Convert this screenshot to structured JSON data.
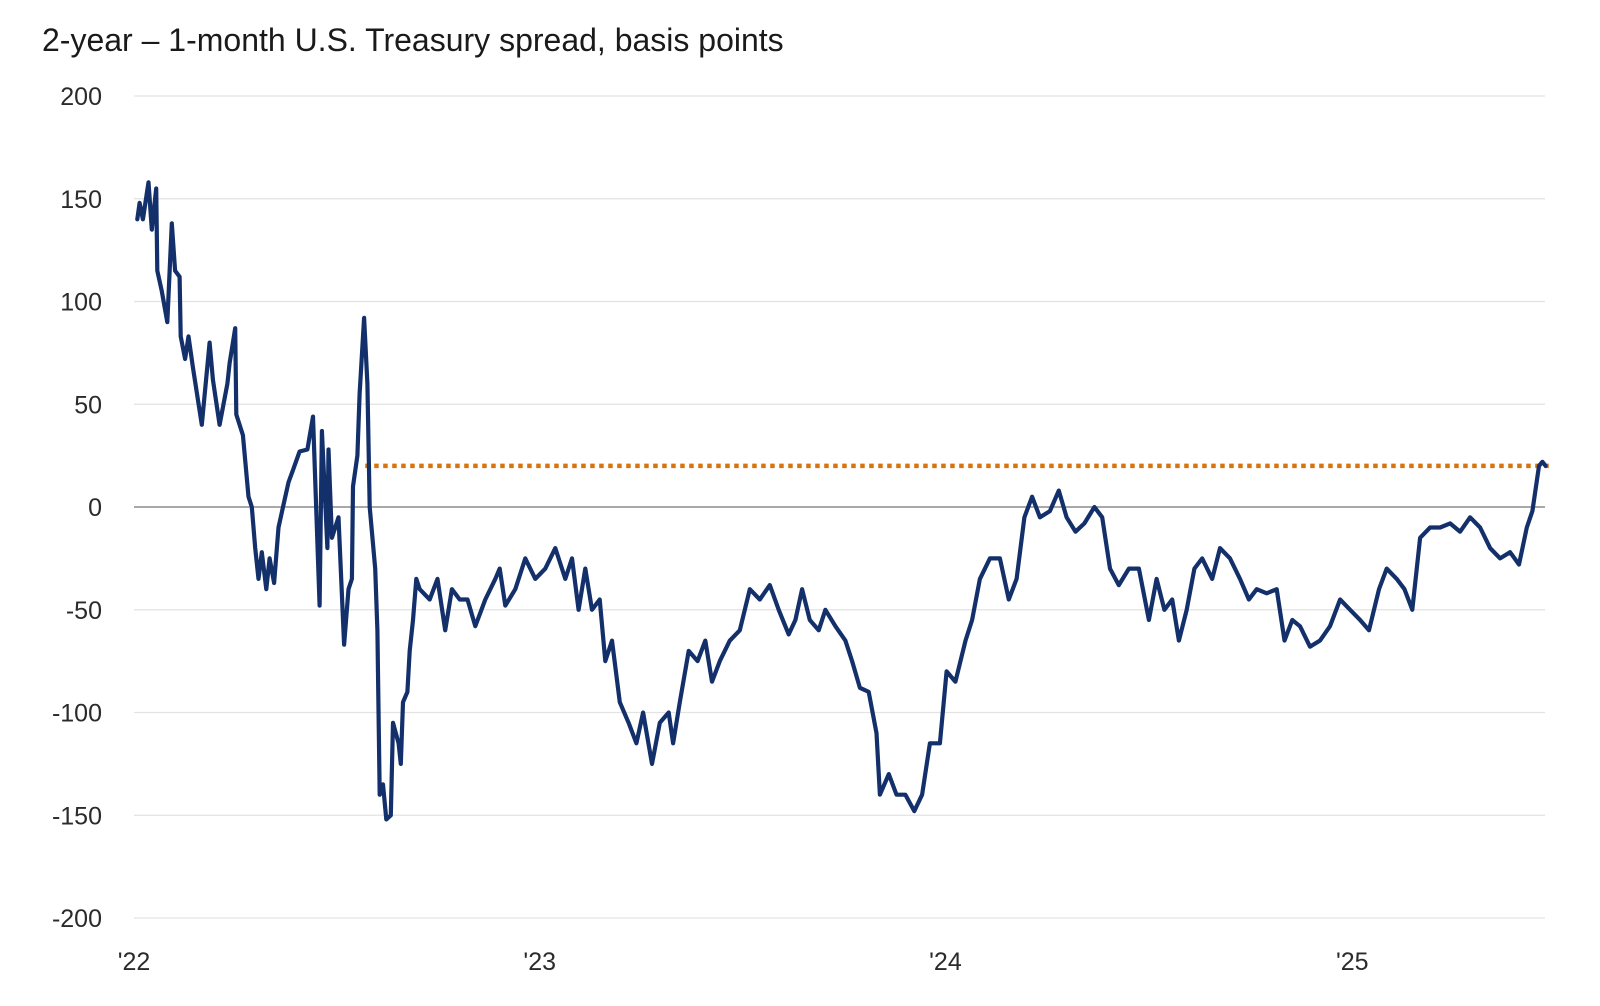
{
  "chart_data": {
    "type": "line",
    "title": "2-year – 1-month U.S. Treasury spread, basis points",
    "xlabel": "",
    "ylabel": "",
    "ylim": [
      -200,
      200
    ],
    "xlim": [
      "2022-01-01",
      "2025-06-25"
    ],
    "grid": true,
    "y_ticks": [
      "200",
      "150",
      "100",
      "50",
      "0",
      "-50",
      "-100",
      "-150",
      "-200"
    ],
    "y_tick_values": [
      200,
      150,
      100,
      50,
      0,
      -50,
      -100,
      -150,
      -200
    ],
    "x_ticks": [
      {
        "label": "'22",
        "date": "2022-01-01"
      },
      {
        "label": "'23",
        "date": "2023-01-01"
      },
      {
        "label": "'24",
        "date": "2024-01-01"
      },
      {
        "label": "'25",
        "date": "2025-01-01"
      }
    ],
    "colors": {
      "series": "#13306b",
      "reference": "#d9730d",
      "grid": "#e3e3e3",
      "zero_line": "#8c8c8c"
    },
    "reference_line": {
      "value": 20,
      "start": "2022-07-28",
      "end": "2025-06-25",
      "style": "dotted"
    },
    "series": [
      {
        "points": [
          [
            "2022-01-04",
            140
          ],
          [
            "2022-01-06",
            148
          ],
          [
            "2022-01-09",
            140
          ],
          [
            "2022-01-14",
            158
          ],
          [
            "2022-01-17",
            135
          ],
          [
            "2022-01-21",
            155
          ],
          [
            "2022-01-22",
            115
          ],
          [
            "2022-01-26",
            105
          ],
          [
            "2022-01-31",
            90
          ],
          [
            "2022-02-04",
            138
          ],
          [
            "2022-02-07",
            115
          ],
          [
            "2022-02-11",
            112
          ],
          [
            "2022-02-12",
            83
          ],
          [
            "2022-02-16",
            72
          ],
          [
            "2022-02-19",
            83
          ],
          [
            "2022-02-23",
            68
          ],
          [
            "2022-03-03",
            40
          ],
          [
            "2022-03-10",
            80
          ],
          [
            "2022-03-13",
            62
          ],
          [
            "2022-03-19",
            40
          ],
          [
            "2022-03-26",
            60
          ],
          [
            "2022-03-28",
            70
          ],
          [
            "2022-04-02",
            87
          ],
          [
            "2022-04-03",
            45
          ],
          [
            "2022-04-09",
            35
          ],
          [
            "2022-04-14",
            5
          ],
          [
            "2022-04-17",
            0
          ],
          [
            "2022-04-20",
            -20
          ],
          [
            "2022-04-23",
            -35
          ],
          [
            "2022-04-26",
            -22
          ],
          [
            "2022-04-30",
            -40
          ],
          [
            "2022-05-03",
            -25
          ],
          [
            "2022-05-07",
            -37
          ],
          [
            "2022-05-11",
            -10
          ],
          [
            "2022-05-15",
            0
          ],
          [
            "2022-05-20",
            12
          ],
          [
            "2022-05-24",
            18
          ],
          [
            "2022-05-30",
            27
          ],
          [
            "2022-06-06",
            28
          ],
          [
            "2022-06-11",
            44
          ],
          [
            "2022-06-17",
            -48
          ],
          [
            "2022-06-19",
            37
          ],
          [
            "2022-06-24",
            -20
          ],
          [
            "2022-06-25",
            28
          ],
          [
            "2022-06-28",
            -15
          ],
          [
            "2022-07-04",
            -5
          ],
          [
            "2022-07-09",
            -67
          ],
          [
            "2022-07-13",
            -40
          ],
          [
            "2022-07-16",
            -35
          ],
          [
            "2022-07-17",
            10
          ],
          [
            "2022-07-21",
            25
          ],
          [
            "2022-07-23",
            55
          ],
          [
            "2022-07-27",
            92
          ],
          [
            "2022-07-30",
            60
          ],
          [
            "2022-08-01",
            0
          ],
          [
            "2022-08-06",
            -30
          ],
          [
            "2022-08-08",
            -60
          ],
          [
            "2022-08-10",
            -140
          ],
          [
            "2022-08-13",
            -135
          ],
          [
            "2022-08-16",
            -152
          ],
          [
            "2022-08-20",
            -150
          ],
          [
            "2022-08-22",
            -105
          ],
          [
            "2022-08-27",
            -115
          ],
          [
            "2022-08-29",
            -125
          ],
          [
            "2022-08-31",
            -95
          ],
          [
            "2022-09-04",
            -90
          ],
          [
            "2022-09-06",
            -70
          ],
          [
            "2022-09-09",
            -55
          ],
          [
            "2022-09-12",
            -35
          ],
          [
            "2022-09-15",
            -40
          ],
          [
            "2022-09-24",
            -45
          ],
          [
            "2022-10-01",
            -35
          ],
          [
            "2022-10-08",
            -60
          ],
          [
            "2022-10-14",
            -40
          ],
          [
            "2022-10-21",
            -45
          ],
          [
            "2022-10-28",
            -45
          ],
          [
            "2022-11-04",
            -58
          ],
          [
            "2022-11-13",
            -45
          ],
          [
            "2022-11-22",
            -35
          ],
          [
            "2022-11-26",
            -30
          ],
          [
            "2022-12-01",
            -48
          ],
          [
            "2022-12-10",
            -40
          ],
          [
            "2022-12-19",
            -25
          ],
          [
            "2022-12-28",
            -35
          ],
          [
            "2023-01-06",
            -30
          ],
          [
            "2023-01-15",
            -20
          ],
          [
            "2023-01-24",
            -35
          ],
          [
            "2023-01-30",
            -25
          ],
          [
            "2023-02-05",
            -50
          ],
          [
            "2023-02-11",
            -30
          ],
          [
            "2023-02-17",
            -50
          ],
          [
            "2023-02-24",
            -45
          ],
          [
            "2023-03-01",
            -75
          ],
          [
            "2023-03-07",
            -65
          ],
          [
            "2023-03-14",
            -95
          ],
          [
            "2023-03-22",
            -105
          ],
          [
            "2023-03-29",
            -115
          ],
          [
            "2023-04-04",
            -100
          ],
          [
            "2023-04-12",
            -125
          ],
          [
            "2023-04-19",
            -105
          ],
          [
            "2023-04-27",
            -100
          ],
          [
            "2023-05-01",
            -115
          ],
          [
            "2023-05-07",
            -95
          ],
          [
            "2023-05-15",
            -70
          ],
          [
            "2023-05-23",
            -75
          ],
          [
            "2023-05-30",
            -65
          ],
          [
            "2023-06-05",
            -85
          ],
          [
            "2023-06-12",
            -75
          ],
          [
            "2023-06-21",
            -65
          ],
          [
            "2023-06-30",
            -60
          ],
          [
            "2023-07-09",
            -40
          ],
          [
            "2023-07-18",
            -45
          ],
          [
            "2023-07-27",
            -38
          ],
          [
            "2023-08-04",
            -50
          ],
          [
            "2023-08-13",
            -62
          ],
          [
            "2023-08-19",
            -55
          ],
          [
            "2023-08-25",
            -40
          ],
          [
            "2023-09-01",
            -55
          ],
          [
            "2023-09-09",
            -60
          ],
          [
            "2023-09-15",
            -50
          ],
          [
            "2023-09-24",
            -58
          ],
          [
            "2023-10-03",
            -65
          ],
          [
            "2023-10-09",
            -75
          ],
          [
            "2023-10-16",
            -88
          ],
          [
            "2023-10-24",
            -90
          ],
          [
            "2023-10-31",
            -110
          ],
          [
            "2023-11-03",
            -140
          ],
          [
            "2023-11-11",
            -130
          ],
          [
            "2023-11-18",
            -140
          ],
          [
            "2023-11-26",
            -140
          ],
          [
            "2023-12-04",
            -148
          ],
          [
            "2023-12-11",
            -140
          ],
          [
            "2023-12-18",
            -115
          ],
          [
            "2023-12-27",
            -115
          ],
          [
            "2024-01-02",
            -80
          ],
          [
            "2024-01-10",
            -85
          ],
          [
            "2024-01-19",
            -65
          ],
          [
            "2024-01-25",
            -55
          ],
          [
            "2024-02-01",
            -35
          ],
          [
            "2024-02-10",
            -25
          ],
          [
            "2024-02-19",
            -25
          ],
          [
            "2024-02-27",
            -45
          ],
          [
            "2024-03-05",
            -35
          ],
          [
            "2024-03-12",
            -5
          ],
          [
            "2024-03-19",
            5
          ],
          [
            "2024-03-26",
            -5
          ],
          [
            "2024-04-04",
            -2
          ],
          [
            "2024-04-12",
            8
          ],
          [
            "2024-04-19",
            -5
          ],
          [
            "2024-04-27",
            -12
          ],
          [
            "2024-05-05",
            -8
          ],
          [
            "2024-05-14",
            0
          ],
          [
            "2024-05-21",
            -5
          ],
          [
            "2024-05-28",
            -30
          ],
          [
            "2024-06-05",
            -38
          ],
          [
            "2024-06-14",
            -30
          ],
          [
            "2024-06-23",
            -30
          ],
          [
            "2024-07-02",
            -55
          ],
          [
            "2024-07-09",
            -35
          ],
          [
            "2024-07-16",
            -50
          ],
          [
            "2024-07-23",
            -45
          ],
          [
            "2024-07-29",
            -65
          ],
          [
            "2024-08-05",
            -50
          ],
          [
            "2024-08-12",
            -30
          ],
          [
            "2024-08-19",
            -25
          ],
          [
            "2024-08-28",
            -35
          ],
          [
            "2024-09-04",
            -20
          ],
          [
            "2024-09-13",
            -25
          ],
          [
            "2024-09-22",
            -35
          ],
          [
            "2024-09-30",
            -45
          ],
          [
            "2024-10-07",
            -40
          ],
          [
            "2024-10-16",
            -42
          ],
          [
            "2024-10-25",
            -40
          ],
          [
            "2024-11-01",
            -65
          ],
          [
            "2024-11-08",
            -55
          ],
          [
            "2024-11-15",
            -58
          ],
          [
            "2024-11-24",
            -68
          ],
          [
            "2024-12-03",
            -65
          ],
          [
            "2024-12-12",
            -58
          ],
          [
            "2024-12-21",
            -45
          ],
          [
            "2024-12-30",
            -50
          ],
          [
            "2025-01-08",
            -55
          ],
          [
            "2025-01-16",
            -60
          ],
          [
            "2025-01-25",
            -40
          ],
          [
            "2025-02-01",
            -30
          ],
          [
            "2025-02-10",
            -35
          ],
          [
            "2025-02-17",
            -40
          ],
          [
            "2025-02-24",
            -50
          ],
          [
            "2025-03-03",
            -15
          ],
          [
            "2025-03-12",
            -10
          ],
          [
            "2025-03-21",
            -10
          ],
          [
            "2025-03-30",
            -8
          ],
          [
            "2025-04-08",
            -12
          ],
          [
            "2025-04-17",
            -5
          ],
          [
            "2025-04-26",
            -10
          ],
          [
            "2025-05-05",
            -20
          ],
          [
            "2025-05-14",
            -25
          ],
          [
            "2025-05-23",
            -22
          ],
          [
            "2025-05-31",
            -28
          ],
          [
            "2025-06-07",
            -10
          ],
          [
            "2025-06-12",
            -2
          ],
          [
            "2025-06-18",
            20
          ],
          [
            "2025-06-21",
            22
          ],
          [
            "2025-06-24",
            20
          ]
        ]
      }
    ]
  }
}
